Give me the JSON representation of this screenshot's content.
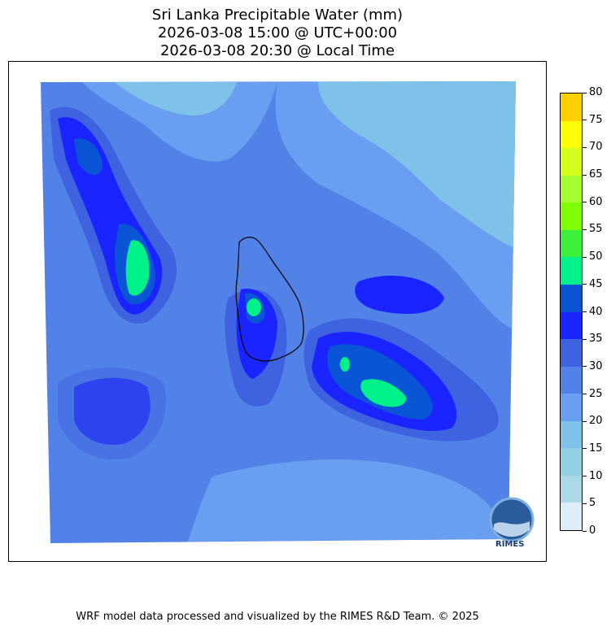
{
  "title": {
    "line1": "Sri Lanka Precipitable Water (mm)",
    "line2": "2026-03-08 15:00 @ UTC+00:00",
    "line3": "2026-03-08 20:30 @ Local Time"
  },
  "colorbar": {
    "ticks": [
      "0",
      "5",
      "10",
      "15",
      "20",
      "25",
      "30",
      "35",
      "40",
      "45",
      "50",
      "55",
      "60",
      "65",
      "70",
      "75",
      "80"
    ],
    "colors": [
      "#ddeef8",
      "#add8e6",
      "#92d0e6",
      "#7ec2ea",
      "#6a9ef0",
      "#5282e8",
      "#3f62e0",
      "#1a24ff",
      "#0a54d6",
      "#00f08a",
      "#3cf03c",
      "#80ff00",
      "#a8ff30",
      "#d4ff1c",
      "#ffff00",
      "#ffd000"
    ]
  },
  "logo": {
    "text": "RIMES"
  },
  "footer": "WRF model data processed and visualized by the RIMES R&D Team. © 2025"
}
